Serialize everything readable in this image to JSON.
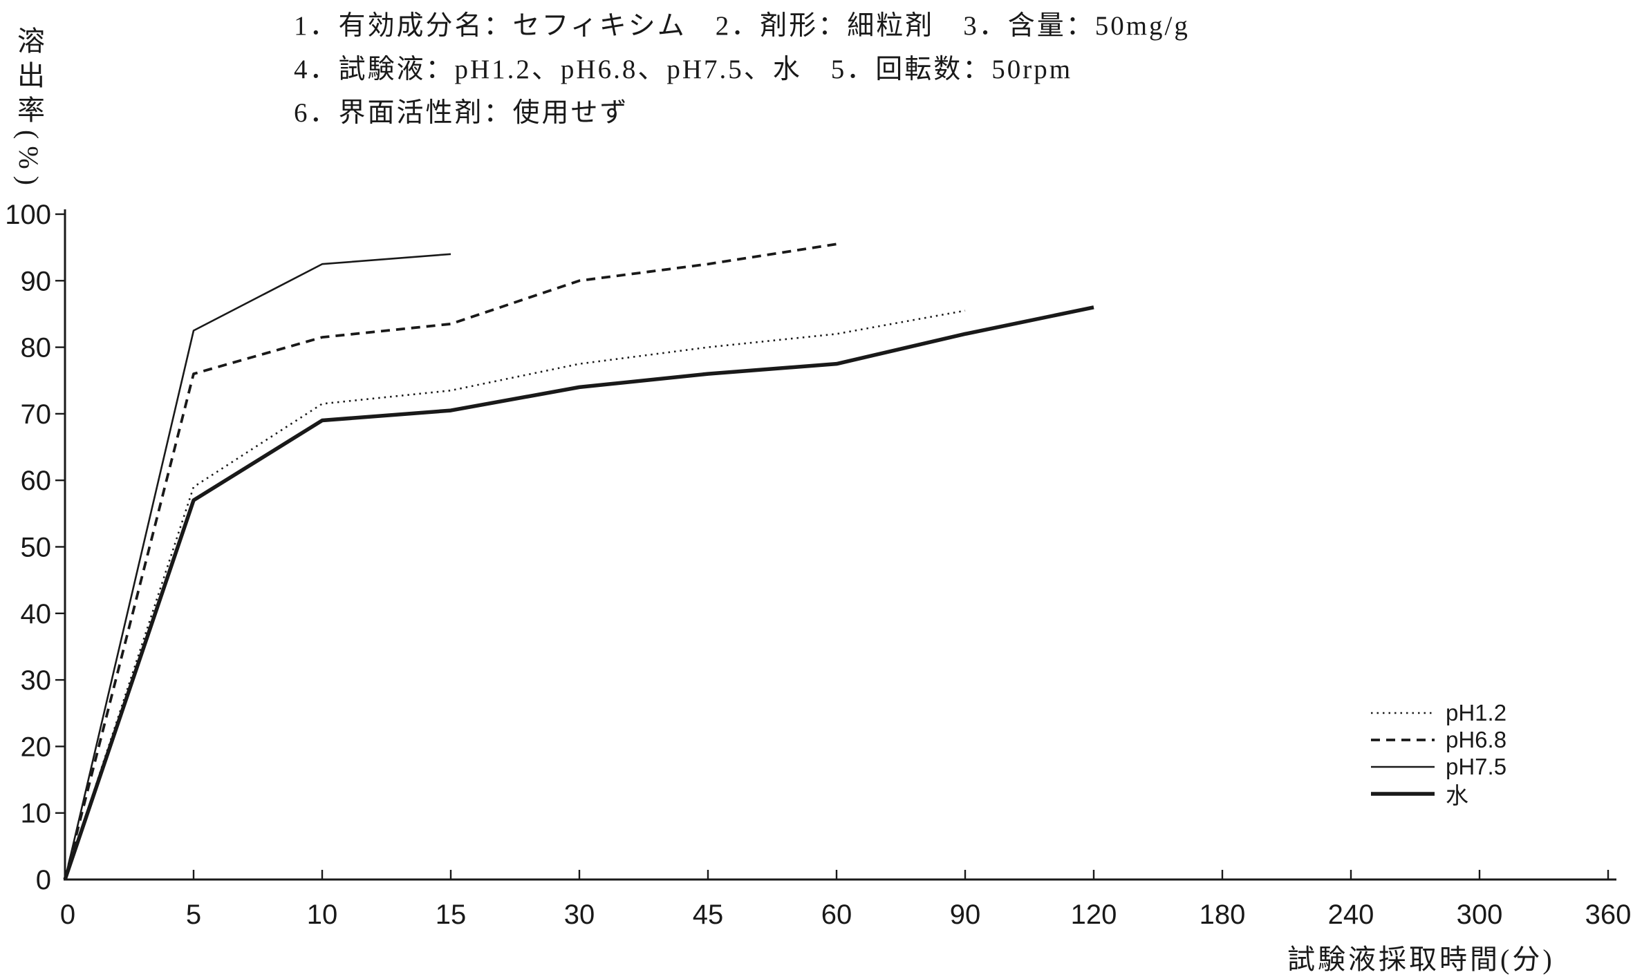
{
  "colors": {
    "ink": "#191919",
    "paper": "#ffffff"
  },
  "header": {
    "line1": "1．有効成分名：セフィキシム　2．剤形：細粒剤　3．含量：50mg/g",
    "line2": "4．試験液：pH1.2、pH6.8、pH7.5、水　5．回転数：50rpm",
    "line3": "6．界面活性剤：使用せず"
  },
  "chart_data": {
    "type": "line",
    "title": "",
    "xlabel": "試験液採取時間(分)",
    "ylabel": "溶出率(%)",
    "x_ticks": [
      0,
      5,
      10,
      15,
      30,
      45,
      60,
      90,
      120,
      180,
      240,
      300,
      360
    ],
    "x_axis_note": "time ticks are equally spaced (compressed time axis)",
    "y_ticks": [
      0,
      10,
      20,
      30,
      40,
      50,
      60,
      70,
      80,
      90,
      100
    ],
    "ylim": [
      0,
      100
    ],
    "grid": false,
    "legend_position": "right-middle",
    "series": [
      {
        "name": "pH1.2",
        "key": "ph1-2",
        "style": "dotted",
        "x": [
          0,
          5,
          10,
          15,
          30,
          45,
          60,
          90
        ],
        "values": [
          0,
          59,
          71.5,
          73.5,
          77.5,
          80,
          82,
          85.5
        ]
      },
      {
        "name": "pH6.8",
        "key": "ph6-8",
        "style": "dashed",
        "x": [
          0,
          5,
          10,
          15,
          30,
          45,
          60
        ],
        "values": [
          0,
          76,
          81.5,
          83.5,
          90,
          92.5,
          95.5
        ]
      },
      {
        "name": "pH7.5",
        "key": "ph7-5",
        "style": "solid-thin",
        "x": [
          0,
          5,
          10,
          15
        ],
        "values": [
          0,
          82.5,
          92.5,
          94
        ]
      },
      {
        "name": "水",
        "key": "water",
        "style": "solid-thick",
        "x": [
          0,
          5,
          10,
          15,
          30,
          45,
          60,
          90,
          120
        ],
        "values": [
          0,
          57,
          69,
          70.5,
          74,
          76,
          77.5,
          82,
          86
        ]
      }
    ]
  }
}
